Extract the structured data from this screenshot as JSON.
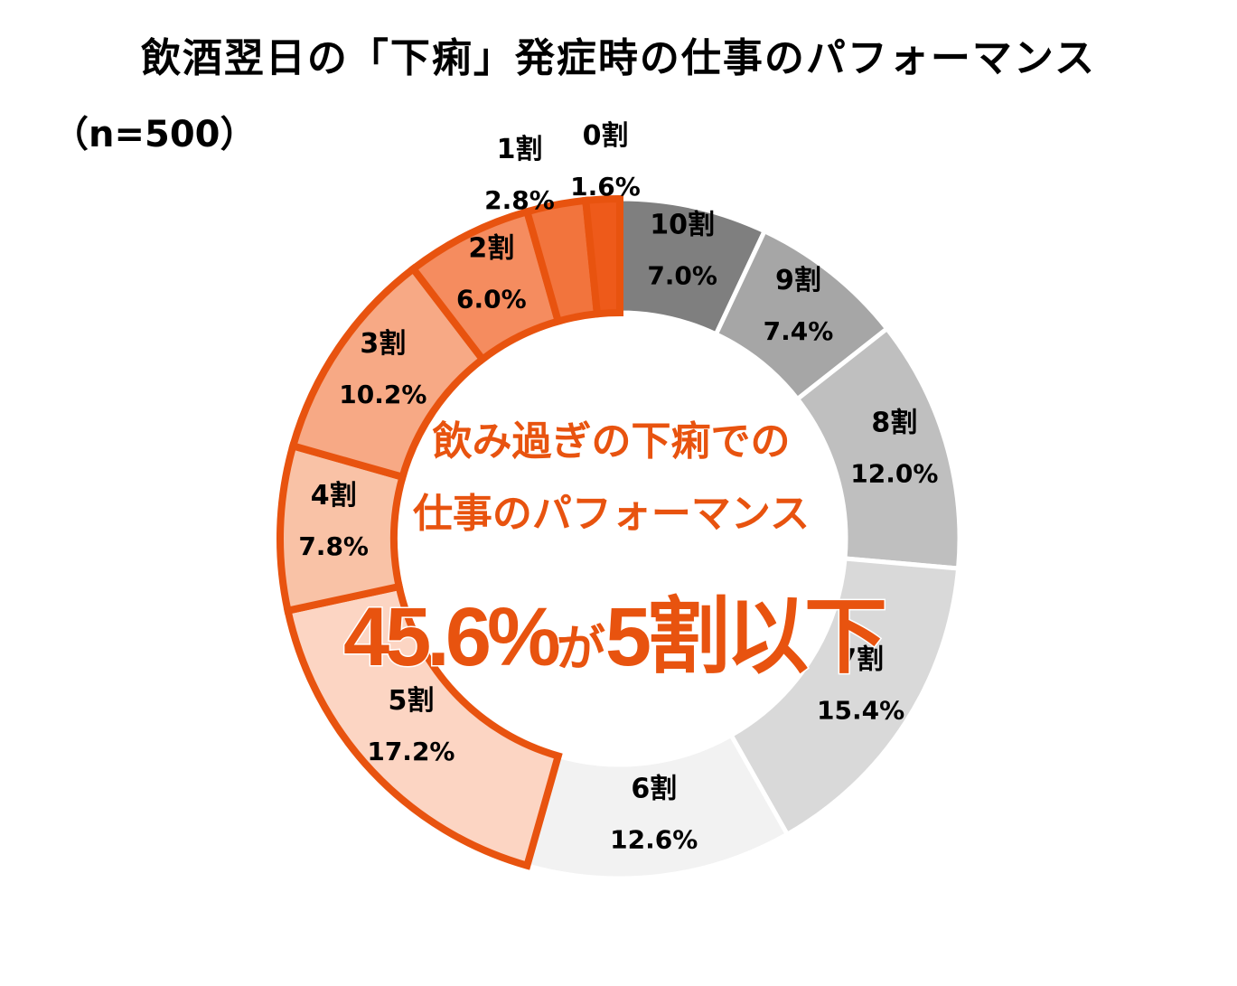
{
  "chart": {
    "title": "飲酒翌日の「下痢」発症時の仕事のパフォーマンス",
    "sample": "（n=500）",
    "center_line1": "飲み過ぎの下痢での",
    "center_line2": "仕事のパフォーマンス",
    "headline_value": "45.6%",
    "headline_connector": "が",
    "headline_rest": "5割以下"
  },
  "chart_data": {
    "type": "pie",
    "variant": "donut",
    "title": "飲酒翌日の「下痢」発症時の仕事のパフォーマンス",
    "categories": [
      "10割",
      "9割",
      "8割",
      "7割",
      "6割",
      "5割",
      "4割",
      "3割",
      "2割",
      "1割",
      "0割"
    ],
    "values": [
      7.0,
      7.4,
      12.0,
      15.4,
      12.6,
      17.2,
      7.8,
      10.2,
      6.0,
      2.8,
      1.6
    ],
    "value_labels": [
      "7.0%",
      "7.4%",
      "12.0%",
      "15.4%",
      "12.6%",
      "17.2%",
      "7.8%",
      "10.2%",
      "6.0%",
      "2.8%",
      "1.6%"
    ],
    "colors": [
      "#7f7f7f",
      "#a6a6a6",
      "#bfbfbf",
      "#d9d9d9",
      "#f2f2f2",
      "#fcd5c3",
      "#f9c2a6",
      "#f7a985",
      "#f58c5f",
      "#f2743d",
      "#ee5a1a"
    ],
    "highlight_outline": "#e8530f",
    "highlight_categories": [
      "5割",
      "4割",
      "3割",
      "2割",
      "1割",
      "0割"
    ]
  }
}
